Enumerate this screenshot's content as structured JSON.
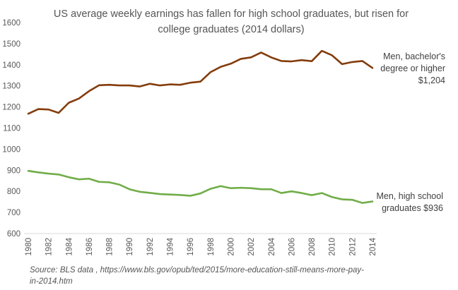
{
  "chart_data": {
    "type": "line",
    "title_lines": [
      "US average weekly earnings has fallen for high school graduates, but risen for",
      "college graduates (2014 dollars)"
    ],
    "xlabel": "",
    "ylabel": "",
    "ylim": [
      600,
      1600
    ],
    "yticks": [
      600,
      700,
      800,
      900,
      1000,
      1100,
      1200,
      1300,
      1400,
      1500,
      1600
    ],
    "x": [
      1980,
      1981,
      1982,
      1983,
      1984,
      1985,
      1986,
      1987,
      1988,
      1989,
      1990,
      1991,
      1992,
      1993,
      1994,
      1995,
      1996,
      1997,
      1998,
      1999,
      2000,
      2001,
      2002,
      2003,
      2004,
      2005,
      2006,
      2007,
      2008,
      2009,
      2010,
      2011,
      2012,
      2013,
      2014
    ],
    "xticks": [
      "1980",
      "1982",
      "1984",
      "1986",
      "1988",
      "1990",
      "1992",
      "1994",
      "1996",
      "1998",
      "2000",
      "2002",
      "2004",
      "2006",
      "2008",
      "2010",
      "2012",
      "2014"
    ],
    "grid": false,
    "series": [
      {
        "label_lines": [
          "Men, bachelor's",
          "degree or higher",
          "$1,204"
        ],
        "color": "#843C0C",
        "values": [
          1168,
          1190,
          1188,
          1172,
          1220,
          1240,
          1275,
          1303,
          1305,
          1302,
          1302,
          1297,
          1310,
          1302,
          1307,
          1305,
          1315,
          1320,
          1365,
          1390,
          1405,
          1428,
          1435,
          1458,
          1435,
          1418,
          1416,
          1422,
          1417,
          1466,
          1445,
          1403,
          1413,
          1418,
          1385
        ]
      },
      {
        "label_lines": [
          "Men, high school",
          "graduates $936"
        ],
        "color": "#70AD47",
        "values": [
          897,
          890,
          884,
          880,
          867,
          857,
          860,
          845,
          843,
          832,
          810,
          798,
          793,
          787,
          785,
          783,
          779,
          790,
          812,
          825,
          815,
          817,
          815,
          810,
          810,
          792,
          800,
          792,
          782,
          792,
          773,
          762,
          760,
          745,
          752
        ]
      }
    ],
    "source_lines": [
      "Source: BLS data , https://www.bls.gov/opub/ted/2015/more-education-still-means-more-pay-",
      "in-2014.htm"
    ]
  }
}
